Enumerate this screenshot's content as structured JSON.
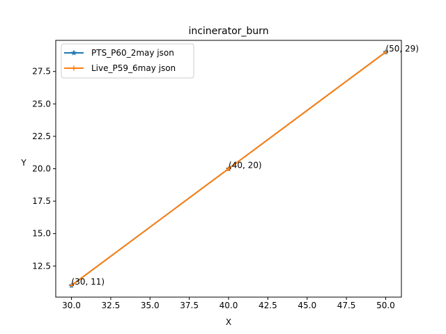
{
  "chart_data": {
    "type": "line",
    "title": "incinerator_burn",
    "xlabel": "X",
    "ylabel": "Y",
    "xlim": [
      29.0,
      51.0
    ],
    "ylim": [
      10.1,
      29.9
    ],
    "xticks": [
      "30.0",
      "32.5",
      "35.0",
      "37.5",
      "40.0",
      "42.5",
      "45.0",
      "47.5",
      "50.0"
    ],
    "yticks": [
      "12.5",
      "15.0",
      "17.5",
      "20.0",
      "22.5",
      "25.0",
      "27.5"
    ],
    "grid": false,
    "legend_position": "upper-left",
    "series": [
      {
        "name": "PTS_P60_2may json",
        "color": "#1f77b4",
        "marker": "star",
        "x": [
          30,
          40,
          50
        ],
        "y": [
          11,
          20,
          29
        ]
      },
      {
        "name": "Live_P59_6may json",
        "color": "#ff7f0e",
        "marker": "plus",
        "x": [
          30,
          40,
          50
        ],
        "y": [
          11,
          20,
          29
        ]
      }
    ],
    "annotations": [
      {
        "x": 30,
        "y": 11,
        "text": "(30, 11)"
      },
      {
        "x": 40,
        "y": 20,
        "text": "(40, 20)"
      },
      {
        "x": 50,
        "y": 29,
        "text": "(50, 29)"
      }
    ]
  }
}
